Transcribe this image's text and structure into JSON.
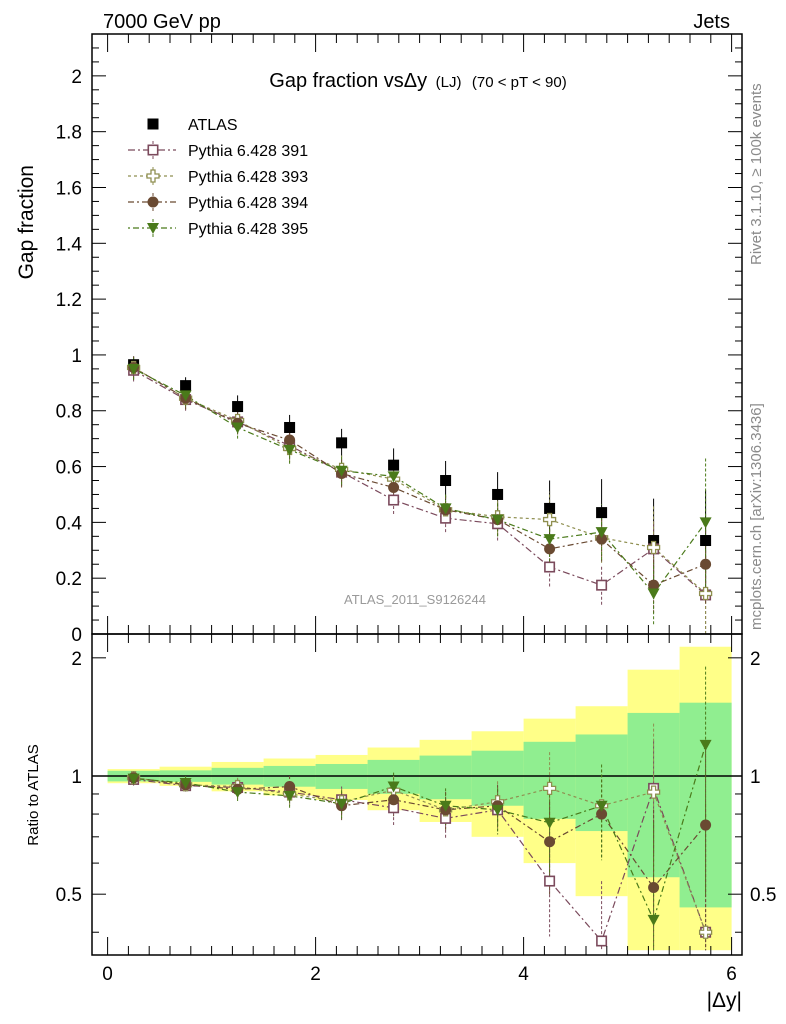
{
  "header": {
    "left": "7000 GeV pp",
    "right": "Jets"
  },
  "side_labels": {
    "rivet": "Rivet 3.1.10, ≥ 100k events",
    "mcplots": "mcplots.cern.ch [arXiv:1306.3436]"
  },
  "chart_data": {
    "type": "scatter",
    "title_main": "Gap fraction vsΔy",
    "title_paren1": "(LJ)",
    "title_paren2": "(70 < pT <  90)",
    "ylabel": "Gap fraction",
    "ratio_ylabel": "Ratio to ATLAS",
    "xlabel": "|Δy|",
    "watermark": "ATLAS_2011_S9126244",
    "xlim": [
      -0.15,
      6.1
    ],
    "ylim": [
      0,
      2.15
    ],
    "ratio_ylim": [
      0.35,
      2.3
    ],
    "x_ticks": [
      "0",
      "2",
      "4",
      "6"
    ],
    "y_ticks": [
      "0",
      "0.2",
      "0.4",
      "0.6",
      "0.8",
      "1",
      "1.2",
      "1.4",
      "1.6",
      "1.8",
      "2"
    ],
    "ratio_y_ticks": [
      "0.5",
      "1",
      "2"
    ],
    "x": [
      0.25,
      0.75,
      1.25,
      1.75,
      2.25,
      2.75,
      3.25,
      3.75,
      4.25,
      4.75,
      5.25,
      5.75
    ],
    "series": [
      {
        "name": "ATLAS",
        "color": "#000000",
        "marker": "square-filled",
        "values": [
          0.965,
          0.89,
          0.815,
          0.74,
          0.685,
          0.605,
          0.55,
          0.5,
          0.45,
          0.435,
          0.335,
          0.335
        ],
        "band_inner": [
          0.03,
          0.03,
          0.04,
          0.045,
          0.05,
          0.06,
          0.07,
          0.08,
          0.1,
          0.12,
          0.15,
          0.18
        ],
        "band_outer": [
          0.04,
          0.05,
          0.07,
          0.08,
          0.09,
          0.11,
          0.13,
          0.15,
          0.18,
          0.22,
          0.29,
          0.38
        ]
      },
      {
        "name": "Pythia 6.428 391",
        "color": "#7b4a5c",
        "marker": "square-open",
        "values": [
          0.945,
          0.84,
          0.76,
          0.675,
          0.58,
          0.48,
          0.415,
          0.395,
          0.24,
          0.175,
          0.305,
          0.14
        ],
        "errors": [
          0.04,
          0.04,
          0.04,
          0.05,
          0.05,
          0.05,
          0.05,
          0.06,
          0.07,
          0.07,
          0.1,
          0.14
        ]
      },
      {
        "name": "Pythia 6.428 393",
        "color": "#8f8f50",
        "marker": "plus-open",
        "values": [
          0.955,
          0.845,
          0.765,
          0.665,
          0.59,
          0.555,
          0.445,
          0.42,
          0.41,
          0.345,
          0.31,
          0.145
        ],
        "errors": [
          0.04,
          0.04,
          0.04,
          0.05,
          0.05,
          0.05,
          0.05,
          0.06,
          0.1,
          0.09,
          0.15,
          0.16
        ]
      },
      {
        "name": "Pythia 6.428 394",
        "color": "#6a4a32",
        "marker": "circle-filled",
        "values": [
          0.955,
          0.845,
          0.755,
          0.695,
          0.575,
          0.525,
          0.445,
          0.41,
          0.305,
          0.34,
          0.175,
          0.25
        ],
        "errors": [
          0.04,
          0.04,
          0.04,
          0.05,
          0.05,
          0.05,
          0.05,
          0.06,
          0.08,
          0.08,
          0.1,
          0.14
        ]
      },
      {
        "name": "Pythia 6.428 395",
        "color": "#4a7a1a",
        "marker": "triangle-down-filled",
        "values": [
          0.95,
          0.855,
          0.74,
          0.66,
          0.585,
          0.565,
          0.45,
          0.41,
          0.34,
          0.365,
          0.145,
          0.4
        ],
        "errors": [
          0.04,
          0.04,
          0.04,
          0.05,
          0.05,
          0.05,
          0.05,
          0.06,
          0.1,
          0.1,
          0.11,
          0.23
        ]
      }
    ],
    "ratio_values": {
      "Pythia 6.428 391": [
        0.98,
        0.945,
        0.935,
        0.91,
        0.87,
        0.83,
        0.78,
        0.82,
        0.54,
        0.38,
        0.93,
        0.4
      ],
      "Pythia 6.428 393": [
        0.99,
        0.95,
        0.94,
        0.9,
        0.86,
        0.92,
        0.82,
        0.86,
        0.93,
        0.84,
        0.91,
        0.4
      ],
      "Pythia 6.428 394": [
        0.99,
        0.95,
        0.925,
        0.94,
        0.84,
        0.87,
        0.82,
        0.84,
        0.68,
        0.8,
        0.52,
        0.75
      ],
      "Pythia 6.428 395": [
        0.985,
        0.96,
        0.91,
        0.89,
        0.85,
        0.94,
        0.84,
        0.82,
        0.76,
        0.84,
        0.43,
        1.2
      ]
    },
    "ratio_errors": {
      "Pythia 6.428 391": [
        0.04,
        0.04,
        0.05,
        0.06,
        0.07,
        0.08,
        0.09,
        0.11,
        0.15,
        0.16,
        0.3,
        0.4
      ],
      "Pythia 6.428 393": [
        0.04,
        0.04,
        0.05,
        0.06,
        0.07,
        0.08,
        0.09,
        0.11,
        0.22,
        0.2,
        0.45,
        0.45
      ],
      "Pythia 6.428 394": [
        0.04,
        0.04,
        0.05,
        0.06,
        0.07,
        0.08,
        0.09,
        0.11,
        0.18,
        0.18,
        0.3,
        0.42
      ],
      "Pythia 6.428 395": [
        0.04,
        0.04,
        0.05,
        0.06,
        0.07,
        0.08,
        0.09,
        0.11,
        0.22,
        0.23,
        0.33,
        0.7
      ]
    },
    "grid": false,
    "legend_position": "top-left"
  }
}
